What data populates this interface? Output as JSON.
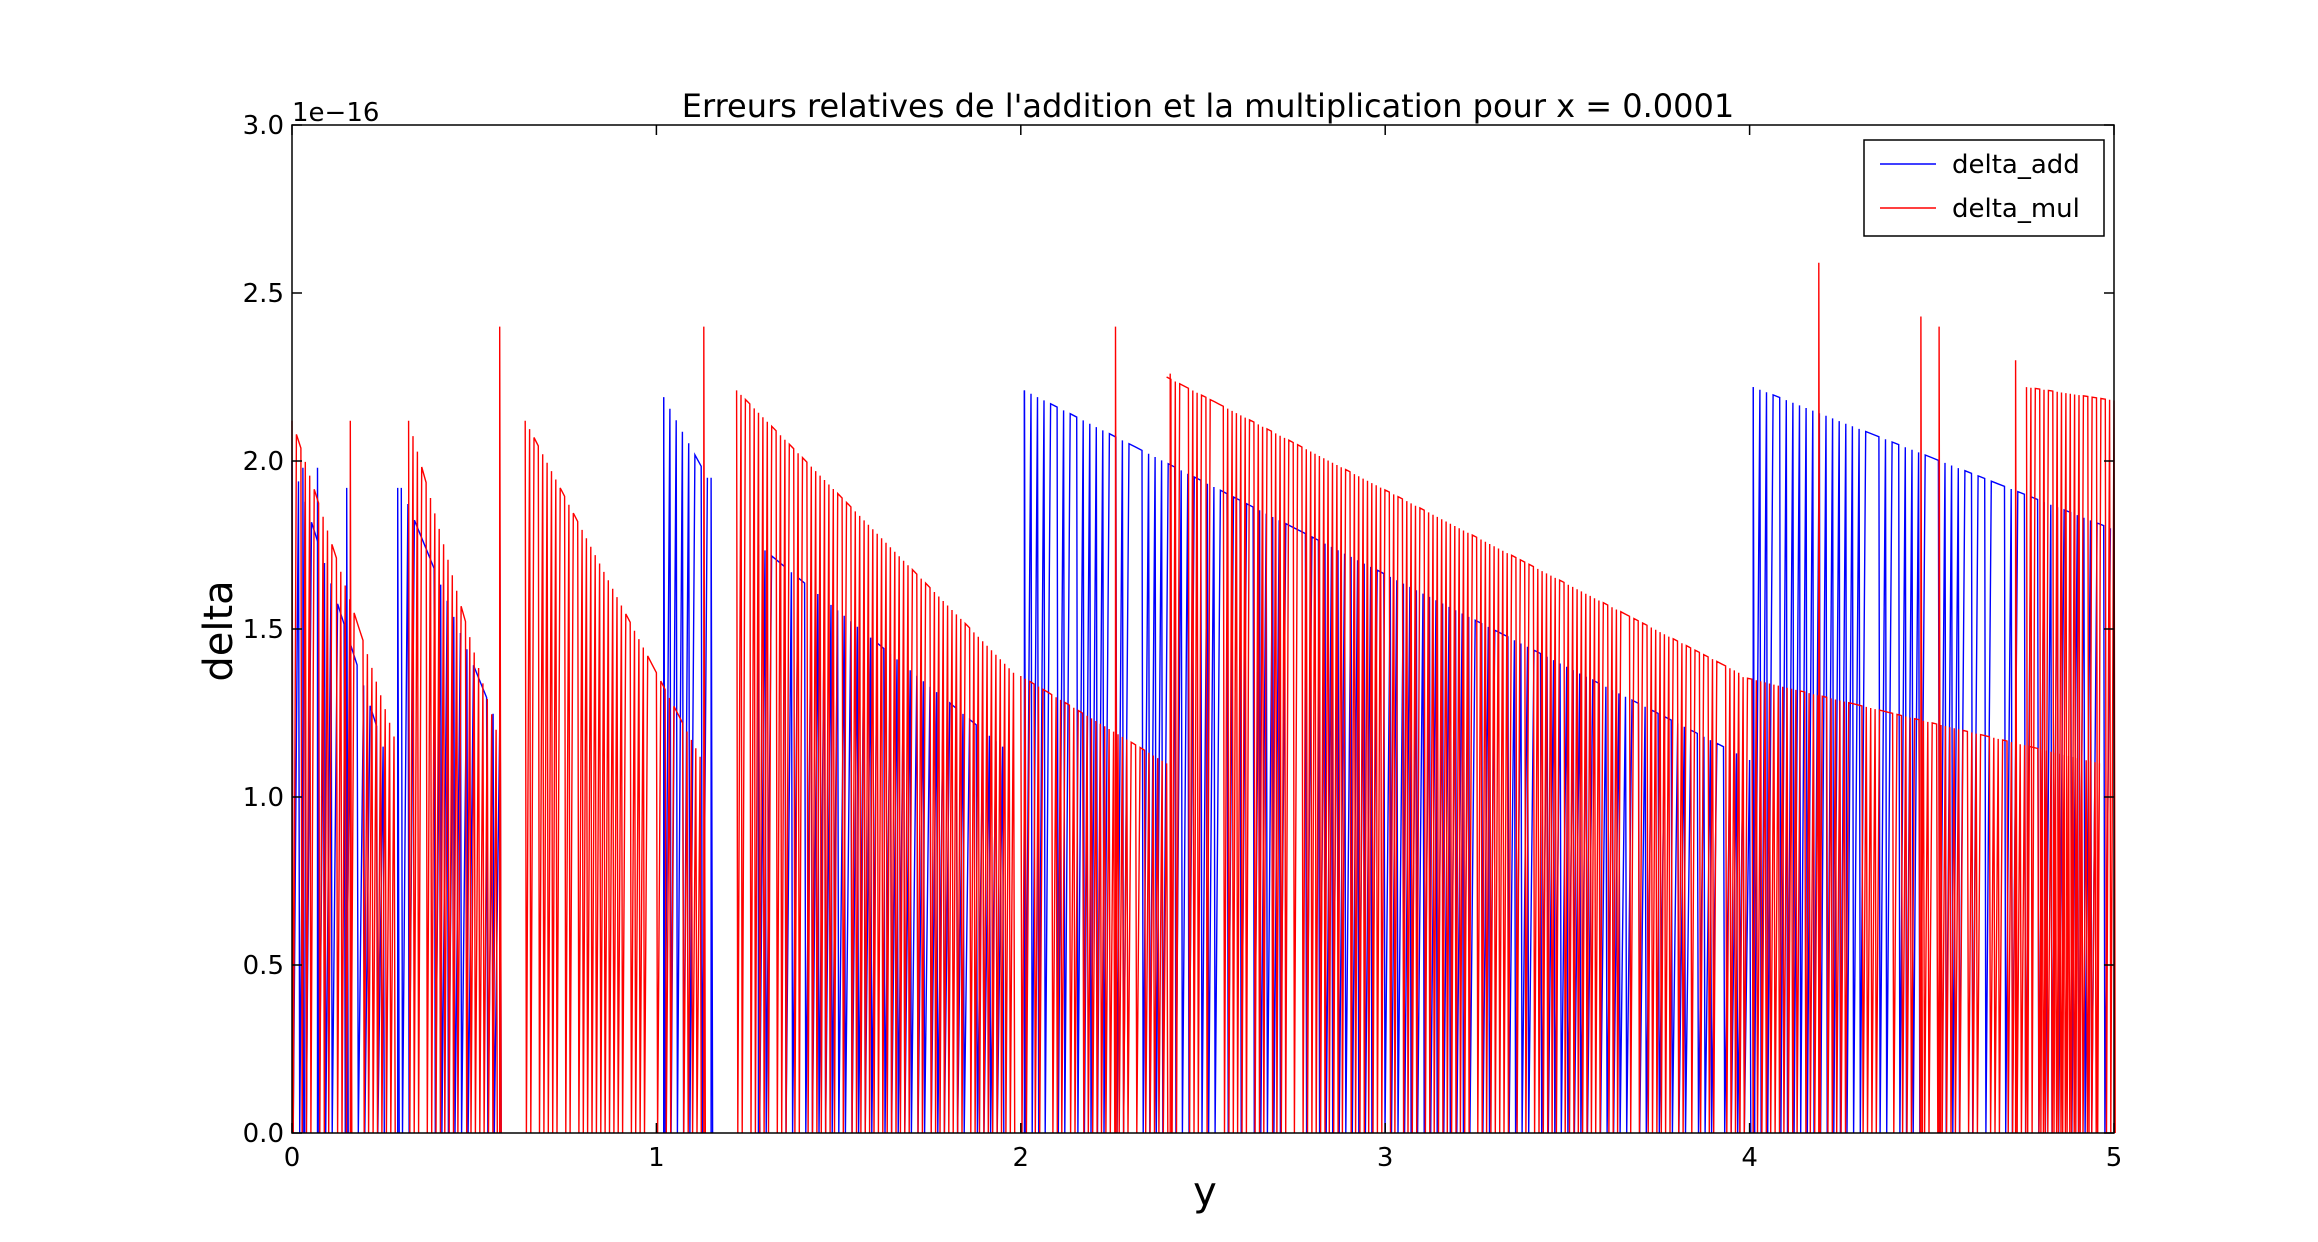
{
  "chart_data": {
    "type": "line",
    "title": "Erreurs relatives de l'addition et la multiplication pour x = 0.0001",
    "xlabel": "y",
    "ylabel": "delta",
    "xlim": [
      0,
      5
    ],
    "ylim": [
      0,
      3.0
    ],
    "y_offset_text": "1e−16",
    "xticks": [
      0,
      1,
      2,
      3,
      4,
      5
    ],
    "xtick_labels": [
      "0",
      "1",
      "2",
      "3",
      "4",
      "5"
    ],
    "yticks": [
      0,
      0.5,
      1.0,
      1.5,
      2.0,
      2.5,
      3.0
    ],
    "ytick_labels": [
      "0.0",
      "0.5",
      "1.0",
      "1.5",
      "2.0",
      "2.5",
      "3.0"
    ],
    "grid": false,
    "legend_position": "top-right",
    "series": [
      {
        "name": "delta_add",
        "color": "#0000ff",
        "envelope": [
          {
            "x_start": 0.0,
            "x_end": 0.25,
            "y_start": 2.0,
            "y_end": 1.15
          },
          {
            "x_start": 0.3,
            "x_end": 0.57,
            "y_start": 1.92,
            "y_end": 1.2
          },
          {
            "x_start": 1.02,
            "x_end": 1.14,
            "y_start": 2.19,
            "y_end": 1.95
          },
          {
            "x_start": 1.28,
            "x_end": 1.95,
            "y_start": 1.75,
            "y_end": 1.15
          },
          {
            "x_start": 2.01,
            "x_end": 4.0,
            "y_start": 2.21,
            "y_end": 1.11
          },
          {
            "x_start": 4.01,
            "x_end": 4.99,
            "y_start": 2.22,
            "y_end": 1.8
          }
        ],
        "spikes": [
          {
            "x": 0.03,
            "y": 1.98
          },
          {
            "x": 0.07,
            "y": 1.98
          },
          {
            "x": 0.15,
            "y": 1.92
          },
          {
            "x": 0.29,
            "y": 1.92
          },
          {
            "x": 0.57,
            "y": 1.93
          },
          {
            "x": 1.02,
            "y": 2.19
          },
          {
            "x": 1.15,
            "y": 1.95
          },
          {
            "x": 1.28,
            "y": 1.75
          },
          {
            "x": 2.01,
            "y": 2.21
          },
          {
            "x": 4.01,
            "y": 2.22
          }
        ]
      },
      {
        "name": "delta_mul",
        "color": "#ff0000",
        "envelope": [
          {
            "x_start": 0.0,
            "x_end": 0.28,
            "y_start": 2.12,
            "y_end": 1.18
          },
          {
            "x_start": 0.32,
            "x_end": 0.56,
            "y_start": 2.12,
            "y_end": 1.2
          },
          {
            "x_start": 0.64,
            "x_end": 1.12,
            "y_start": 2.12,
            "y_end": 1.12
          },
          {
            "x_start": 1.22,
            "x_end": 1.98,
            "y_start": 2.21,
            "y_end": 1.37
          },
          {
            "x_start": 2.0,
            "x_end": 2.4,
            "y_start": 1.36,
            "y_end": 1.1
          },
          {
            "x_start": 2.4,
            "x_end": 3.97,
            "y_start": 2.25,
            "y_end": 1.37
          },
          {
            "x_start": 3.97,
            "x_end": 4.96,
            "y_start": 1.36,
            "y_end": 1.1
          },
          {
            "x_start": 4.76,
            "x_end": 5.0,
            "y_start": 2.22,
            "y_end": 2.18
          }
        ],
        "spikes": [
          {
            "x": 0.16,
            "y": 2.12
          },
          {
            "x": 0.57,
            "y": 2.4
          },
          {
            "x": 1.13,
            "y": 2.4
          },
          {
            "x": 2.26,
            "y": 2.4
          },
          {
            "x": 2.41,
            "y": 2.26
          },
          {
            "x": 4.19,
            "y": 2.59
          },
          {
            "x": 4.47,
            "y": 2.43
          },
          {
            "x": 4.52,
            "y": 2.4
          },
          {
            "x": 4.73,
            "y": 2.3
          }
        ]
      }
    ]
  }
}
